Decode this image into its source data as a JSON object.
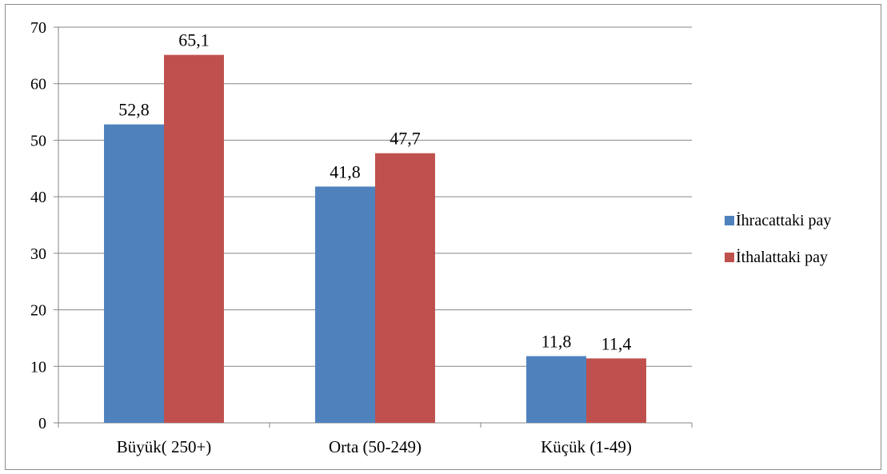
{
  "chart_data": {
    "type": "bar",
    "categories": [
      "Büyük( 250+)",
      "Orta (50-249)",
      "Küçük (1-49)"
    ],
    "series": [
      {
        "name": "İhracattaki pay",
        "values": [
          52.8,
          41.8,
          11.8
        ],
        "labels": [
          "52,8",
          "41,8",
          "11,8"
        ],
        "color": "#4F81BD"
      },
      {
        "name": "İthalattaki pay",
        "values": [
          65.1,
          47.7,
          11.4
        ],
        "labels": [
          "65,1",
          "47,7",
          "11,4"
        ],
        "color": "#C0504D"
      }
    ],
    "ylim": [
      0,
      70
    ],
    "yticks": [
      0,
      10,
      20,
      30,
      40,
      50,
      60,
      70
    ],
    "grid": true,
    "legend_position": "right",
    "title": "",
    "xlabel": "",
    "ylabel": ""
  }
}
